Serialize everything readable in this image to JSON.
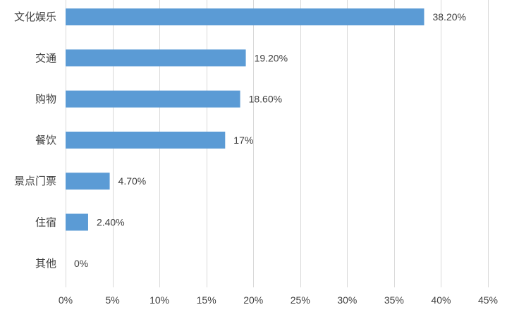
{
  "chart_data": {
    "type": "bar",
    "orientation": "horizontal",
    "categories": [
      "文化娱乐",
      "交通",
      "购物",
      "餐饮",
      "景点门票",
      "住宿",
      "其他"
    ],
    "values": [
      38.2,
      19.2,
      18.6,
      17,
      4.7,
      2.4,
      0
    ],
    "data_labels": [
      "38.20%",
      "19.20%",
      "18.60%",
      "17%",
      "4.70%",
      "2.40%",
      "0%"
    ],
    "xlim": [
      0,
      45
    ],
    "x_ticks": [
      0,
      5,
      10,
      15,
      20,
      25,
      30,
      35,
      40,
      45
    ],
    "x_tick_labels": [
      "0%",
      "5%",
      "10%",
      "15%",
      "20%",
      "25%",
      "30%",
      "35%",
      "40%",
      "45%"
    ],
    "grid": "vertical",
    "legend": "none",
    "bar_color": "#5b9bd5",
    "title": "",
    "xlabel": "",
    "ylabel": ""
  }
}
